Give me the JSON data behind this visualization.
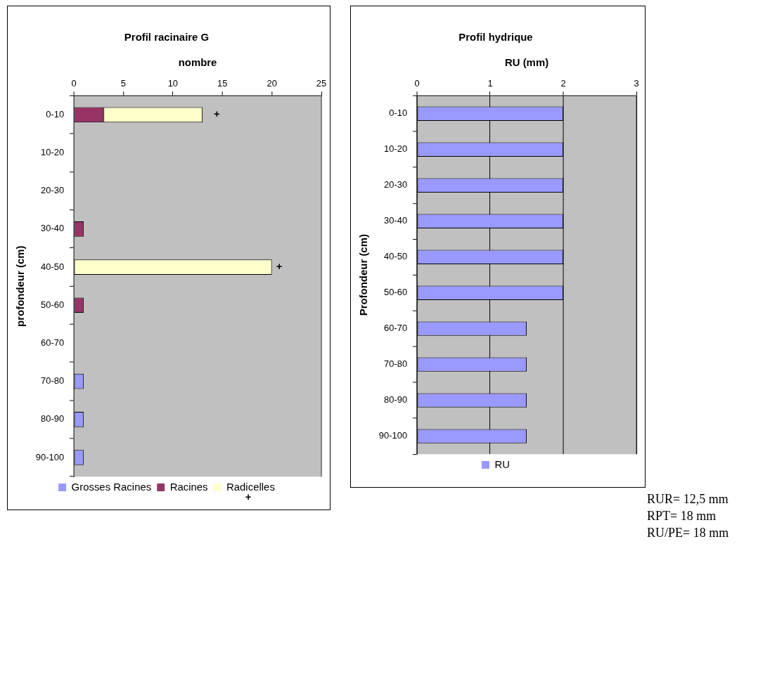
{
  "chart_data": [
    {
      "type": "bar",
      "orientation": "horizontal",
      "stacked": true,
      "title": "Profil racinaire G",
      "xlabel": "nombre",
      "ylabel": "profondeur (cm)",
      "categories": [
        "0-10",
        "10-20",
        "20-30",
        "30-40",
        "40-50",
        "50-60",
        "60-70",
        "70-80",
        "80-90",
        "90-100"
      ],
      "series": [
        {
          "name": "Grosses Racines",
          "color": "#9999ff",
          "values": [
            null,
            null,
            null,
            null,
            null,
            null,
            null,
            1,
            1,
            1
          ]
        },
        {
          "name": "Racines",
          "color": "#993366",
          "values": [
            3,
            null,
            null,
            1,
            null,
            1,
            null,
            null,
            null,
            null
          ]
        },
        {
          "name": "Radicelles",
          "color": "#ffffcc",
          "values": [
            10,
            null,
            null,
            null,
            20,
            null,
            null,
            null,
            null,
            null
          ]
        }
      ],
      "xlim": [
        0,
        25
      ],
      "xticks": [
        0,
        5,
        10,
        15,
        20,
        25
      ],
      "grid": false,
      "legend": "bottom",
      "annotations": [
        {
          "text": "+",
          "x": 13,
          "y": "0-10"
        },
        {
          "text": "+",
          "x": 20,
          "y": "40-50"
        },
        "+"
      ]
    },
    {
      "type": "bar",
      "orientation": "horizontal",
      "title": "Profil hydrique",
      "xlabel": "RU (mm)",
      "ylabel": "Profondeur (cm)",
      "categories": [
        "0-10",
        "10-20",
        "20-30",
        "30-40",
        "40-50",
        "50-60",
        "60-70",
        "70-80",
        "80-90",
        "90-100"
      ],
      "series": [
        {
          "name": "RU",
          "color": "#9999ff",
          "values": [
            2,
            2,
            2,
            2,
            2,
            2,
            1.5,
            1.5,
            1.5,
            1.5
          ]
        }
      ],
      "xlim": [
        0,
        3
      ],
      "xticks": [
        0,
        1,
        2,
        3
      ],
      "grid": "x",
      "legend": "bottom",
      "annotations": [
        "RUR= 12,5 mm",
        "RPT= 18 mm",
        "RU/PE= 18 mm"
      ]
    }
  ]
}
